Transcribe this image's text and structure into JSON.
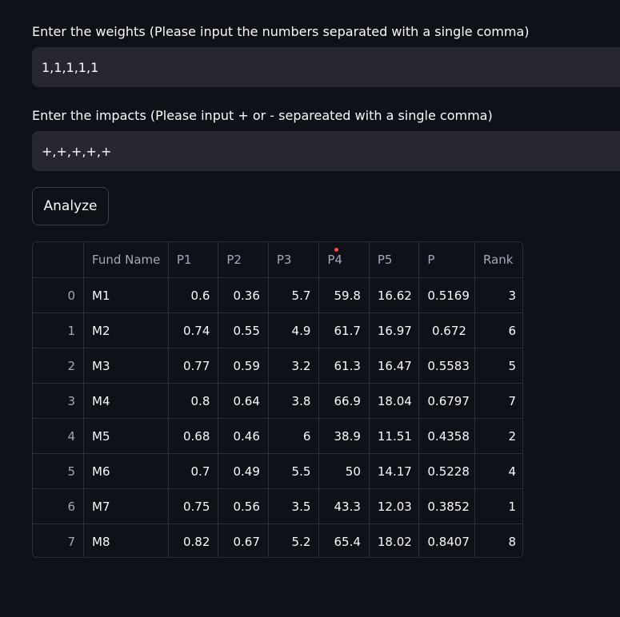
{
  "weights": {
    "label": "Enter the weights (Please input the numbers separated with a single comma)",
    "value": "1,1,1,1,1"
  },
  "impacts": {
    "label": "Enter the impacts (Please input + or - separeated with a single comma)",
    "value": "+,+,+,+,+"
  },
  "analyze_button": "Analyze",
  "table": {
    "columns": [
      "",
      "Fund Name",
      "P1",
      "P2",
      "P3",
      "P4",
      "P5",
      "P",
      "Rank"
    ],
    "rows": [
      [
        "0",
        "M1",
        "0.6",
        "0.36",
        "5.7",
        "59.8",
        "16.62",
        "0.5169",
        "3"
      ],
      [
        "1",
        "M2",
        "0.74",
        "0.55",
        "4.9",
        "61.7",
        "16.97",
        "0.672",
        "6"
      ],
      [
        "2",
        "M3",
        "0.77",
        "0.59",
        "3.2",
        "61.3",
        "16.47",
        "0.5583",
        "5"
      ],
      [
        "3",
        "M4",
        "0.8",
        "0.64",
        "3.8",
        "66.9",
        "18.04",
        "0.6797",
        "7"
      ],
      [
        "4",
        "M5",
        "0.68",
        "0.46",
        "6",
        "38.9",
        "11.51",
        "0.4358",
        "2"
      ],
      [
        "5",
        "M6",
        "0.7",
        "0.49",
        "5.5",
        "50",
        "14.17",
        "0.5228",
        "4"
      ],
      [
        "6",
        "M7",
        "0.75",
        "0.56",
        "3.5",
        "43.3",
        "12.03",
        "0.3852",
        "1"
      ],
      [
        "7",
        "M8",
        "0.82",
        "0.67",
        "5.2",
        "65.4",
        "18.02",
        "0.8407",
        "8"
      ]
    ]
  }
}
